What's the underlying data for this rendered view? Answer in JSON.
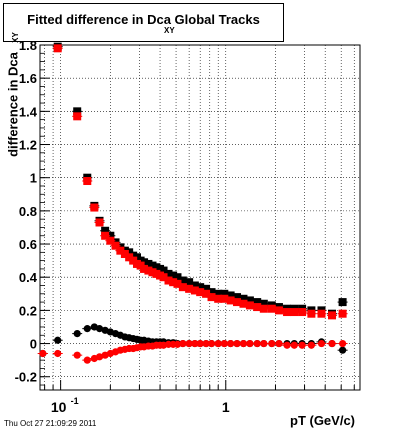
{
  "chart_data": {
    "type": "scatter",
    "title": "Fitted difference in Dca",
    "title_subscript": "XY",
    "title_suffix": "Global Tracks",
    "xlabel": "pT (GeV/c)",
    "ylabel": "difference in Dca",
    "ylabel_subscript": "XY",
    "xscale": "log",
    "xlim": [
      0.075,
      6.5
    ],
    "ylim": [
      -0.28,
      1.8
    ],
    "x_tick_labels": [
      "10^-1",
      "1"
    ],
    "y_tick_labels": [
      "-0.2",
      "0",
      "0.2",
      "0.4",
      "0.6",
      "0.8",
      "1",
      "1.2",
      "1.4",
      "1.6",
      "1.8"
    ],
    "grid": true,
    "series": [
      {
        "color": "#000000",
        "marker": "square",
        "x": [
          0.096,
          0.126,
          0.145,
          0.16,
          0.172,
          0.186,
          0.2,
          0.215,
          0.23,
          0.245,
          0.26,
          0.275,
          0.29,
          0.305,
          0.32,
          0.34,
          0.36,
          0.38,
          0.4,
          0.42,
          0.45,
          0.48,
          0.51,
          0.55,
          0.6,
          0.65,
          0.7,
          0.76,
          0.82,
          0.9,
          0.98,
          1.07,
          1.17,
          1.28,
          1.4,
          1.55,
          1.7,
          1.9,
          2.1,
          2.35,
          2.6,
          2.9,
          3.3,
          3.8,
          4.4,
          5.1
        ],
        "y": [
          1.79,
          1.4,
          1.0,
          0.83,
          0.74,
          0.68,
          0.65,
          0.61,
          0.58,
          0.56,
          0.55,
          0.53,
          0.52,
          0.5,
          0.49,
          0.48,
          0.47,
          0.46,
          0.45,
          0.44,
          0.42,
          0.41,
          0.4,
          0.38,
          0.37,
          0.35,
          0.34,
          0.33,
          0.31,
          0.3,
          0.3,
          0.29,
          0.28,
          0.27,
          0.26,
          0.25,
          0.24,
          0.23,
          0.22,
          0.21,
          0.21,
          0.21,
          0.2,
          0.2,
          0.18,
          0.25
        ]
      },
      {
        "color": "#ff0000",
        "marker": "square",
        "x": [
          0.096,
          0.126,
          0.145,
          0.16,
          0.172,
          0.186,
          0.2,
          0.215,
          0.23,
          0.245,
          0.26,
          0.275,
          0.29,
          0.305,
          0.32,
          0.34,
          0.36,
          0.38,
          0.4,
          0.42,
          0.45,
          0.48,
          0.51,
          0.55,
          0.6,
          0.65,
          0.7,
          0.76,
          0.82,
          0.9,
          0.98,
          1.07,
          1.17,
          1.28,
          1.4,
          1.55,
          1.7,
          1.9,
          2.1,
          2.35,
          2.6,
          2.9,
          3.3,
          3.8,
          4.4,
          5.1
        ],
        "y": [
          1.78,
          1.37,
          0.98,
          0.82,
          0.73,
          0.65,
          0.62,
          0.59,
          0.56,
          0.54,
          0.52,
          0.5,
          0.48,
          0.47,
          0.45,
          0.44,
          0.43,
          0.42,
          0.41,
          0.4,
          0.38,
          0.37,
          0.36,
          0.34,
          0.33,
          0.32,
          0.31,
          0.3,
          0.28,
          0.27,
          0.27,
          0.26,
          0.25,
          0.24,
          0.23,
          0.22,
          0.21,
          0.21,
          0.2,
          0.19,
          0.19,
          0.19,
          0.18,
          0.18,
          0.17,
          0.18
        ]
      },
      {
        "color": "#000000",
        "marker": "circle",
        "x": [
          0.078,
          0.096,
          0.126,
          0.145,
          0.16,
          0.172,
          0.186,
          0.2,
          0.215,
          0.23,
          0.245,
          0.26,
          0.275,
          0.29,
          0.305,
          0.32,
          0.34,
          0.36,
          0.38,
          0.4,
          0.42,
          0.45,
          0.48,
          0.51,
          0.55,
          0.6,
          0.65,
          0.7,
          0.76,
          0.82,
          0.9,
          0.98,
          1.07,
          1.17,
          1.28,
          1.4,
          1.55,
          1.7,
          1.9,
          2.1,
          2.35,
          2.6,
          2.9,
          3.3,
          3.8,
          4.4,
          5.1
        ],
        "y": [
          -0.06,
          0.02,
          0.06,
          0.09,
          0.1,
          0.09,
          0.08,
          0.07,
          0.06,
          0.05,
          0.04,
          0.035,
          0.03,
          0.025,
          0.02,
          0.02,
          0.015,
          0.01,
          0.01,
          0.01,
          0.01,
          0.005,
          0.005,
          0.0,
          0.0,
          0.0,
          0.0,
          0.0,
          0.0,
          0.0,
          0.0,
          0.0,
          0.0,
          0.0,
          0.0,
          0.0,
          0.0,
          0.0,
          0.0,
          0.0,
          0.0,
          0.0,
          0.0,
          0.0,
          0.01,
          0.0,
          -0.04
        ]
      },
      {
        "color": "#ff0000",
        "marker": "circle",
        "x": [
          0.078,
          0.096,
          0.126,
          0.145,
          0.16,
          0.172,
          0.186,
          0.2,
          0.215,
          0.23,
          0.245,
          0.26,
          0.275,
          0.29,
          0.305,
          0.32,
          0.34,
          0.36,
          0.38,
          0.4,
          0.42,
          0.45,
          0.48,
          0.51,
          0.55,
          0.6,
          0.65,
          0.7,
          0.76,
          0.82,
          0.9,
          0.98,
          1.07,
          1.17,
          1.28,
          1.4,
          1.55,
          1.7,
          1.9,
          2.1,
          2.35,
          2.6,
          2.9,
          3.3,
          3.8,
          4.4,
          5.1
        ],
        "y": [
          -0.06,
          -0.06,
          -0.07,
          -0.1,
          -0.09,
          -0.08,
          -0.07,
          -0.06,
          -0.05,
          -0.04,
          -0.035,
          -0.03,
          -0.03,
          -0.025,
          -0.02,
          -0.02,
          -0.015,
          -0.015,
          -0.01,
          -0.01,
          -0.01,
          -0.005,
          -0.005,
          -0.005,
          0.0,
          0.0,
          0.0,
          0.0,
          0.0,
          0.0,
          0.0,
          0.0,
          0.0,
          0.0,
          0.0,
          0.0,
          0.0,
          0.0,
          0.0,
          0.0,
          -0.01,
          -0.01,
          -0.01,
          -0.01,
          0.0,
          0.0,
          0.0
        ]
      }
    ]
  },
  "footer_text": "Thu Oct 27 21:09:29 2011"
}
